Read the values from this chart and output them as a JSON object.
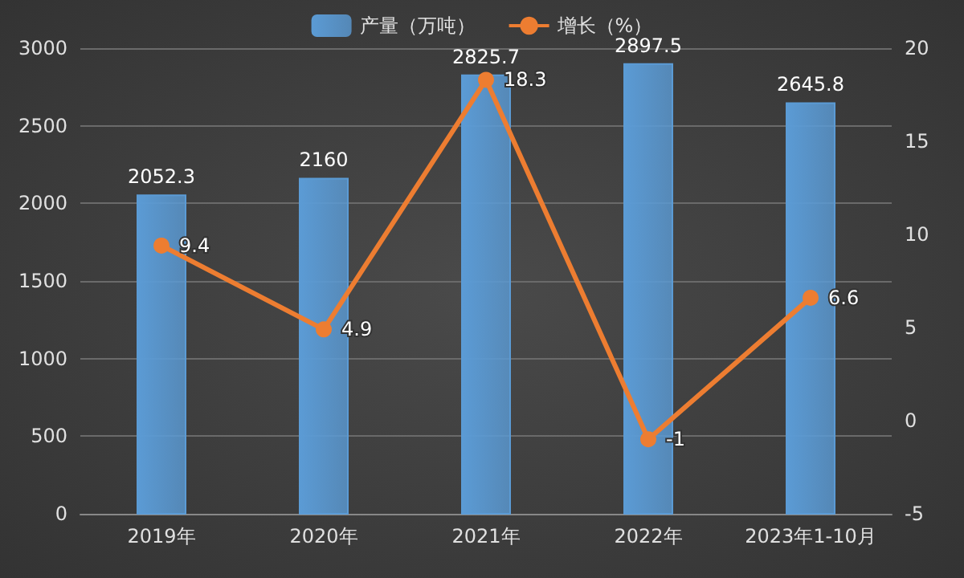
{
  "chart_data": {
    "type": "bar",
    "categories": [
      "2019年",
      "2020年",
      "2021年",
      "2022年",
      "2023年1-10月"
    ],
    "series": [
      {
        "name": "产量（万吨）",
        "color": "#5b9bd5",
        "values": [
          2052.3,
          2160,
          2825.7,
          2897.5,
          2645.8
        ]
      },
      {
        "name": "增长（%）",
        "type": "line",
        "axis": "y2",
        "color": "#ed7d31",
        "values": [
          9.4,
          4.9,
          18.3,
          -1,
          6.6
        ]
      }
    ],
    "ylim": [
      0,
      3000
    ],
    "yticks": [
      0,
      500,
      1000,
      1500,
      2000,
      2500,
      3000
    ],
    "y2lim": [
      -5,
      20
    ],
    "y2ticks": [
      -5,
      0,
      5,
      10,
      15,
      20
    ],
    "data_labels": true,
    "grid": "y",
    "legend": "top",
    "marker": "circle"
  }
}
